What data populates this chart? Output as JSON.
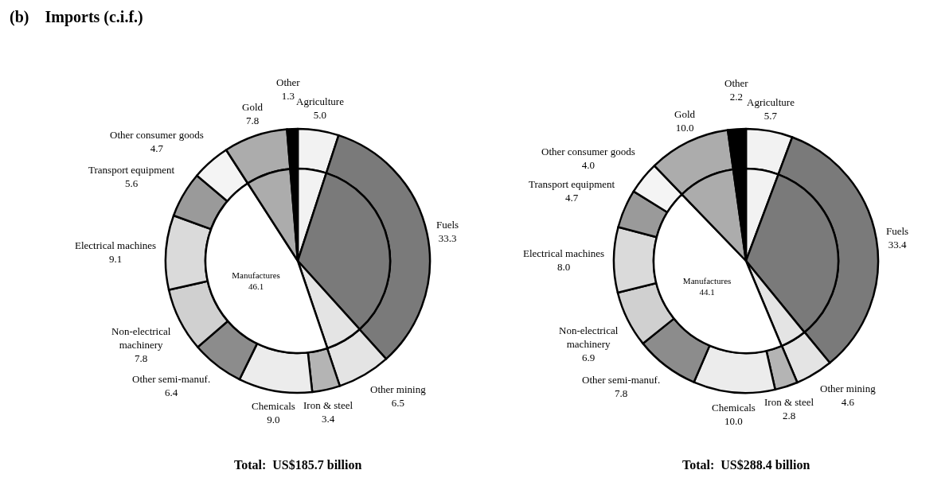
{
  "chart_data": [
    {
      "type": "donut",
      "title": "(b)    Imports (c.i.f.)",
      "categories": [
        "Agriculture",
        "Fuels",
        "Other mining",
        "Iron & steel",
        "Chemicals",
        "Other semi-manuf.",
        "Non-electrical machinery",
        "Electrical machines",
        "Transport equipment",
        "Other consumer goods",
        "Gold",
        "Other"
      ],
      "series": [
        {
          "values": [
            5.0,
            33.3,
            6.5,
            3.4,
            9.0,
            6.4,
            7.8,
            9.1,
            5.6,
            4.7,
            7.8,
            1.3
          ],
          "value_labels": [
            "5.0",
            "33.3",
            "6.5",
            "3.4",
            "9.0",
            "6.4",
            "7.8",
            "9.1",
            "5.6",
            "4.7",
            "7.8",
            "1.3"
          ],
          "colors": [
            "#f2f2f2",
            "#7a7a7a",
            "#e4e4e4",
            "#b4b4b4",
            "#ececec",
            "#8c8c8c",
            "#d0d0d0",
            "#dadada",
            "#9a9a9a",
            "#f4f4f4",
            "#acacac",
            "#000000"
          ]
        },
        {
          "type": "pie",
          "name": "Manufactures",
          "values": [
            5.0,
            33.3,
            6.5,
            46.1,
            null,
            null,
            null,
            null,
            null,
            null,
            7.8,
            1.3
          ],
          "value_labels": [
            null,
            null,
            null,
            "46.1",
            null,
            null,
            null,
            null,
            null,
            null,
            null,
            null
          ],
          "colors": [
            "#f2f2f2",
            "#7a7a7a",
            "#e4e4e4",
            "#ffffff",
            null,
            null,
            null,
            null,
            null,
            null,
            "#acacac",
            "#000000"
          ]
        }
      ],
      "annotations": [
        "Total:  US$185.7 billion"
      ]
    },
    {
      "type": "donut",
      "categories": [
        "Agriculture",
        "Fuels",
        "Other mining",
        "Iron & steel",
        "Chemicals",
        "Other semi-manuf.",
        "Non-electrical machinery",
        "Electrical machines",
        "Transport equipment",
        "Other consumer goods",
        "Gold",
        "Other"
      ],
      "series": [
        {
          "values": [
            5.7,
            33.4,
            4.6,
            2.8,
            10.0,
            7.8,
            6.9,
            8.0,
            4.7,
            4.0,
            10.0,
            2.2
          ],
          "value_labels": [
            "5.7",
            "33.4",
            "4.6",
            "2.8",
            "10.0",
            "7.8",
            "6.9",
            "8.0",
            "4.7",
            "4.0",
            "10.0",
            "2.2"
          ],
          "colors": [
            "#f2f2f2",
            "#7a7a7a",
            "#e4e4e4",
            "#b4b4b4",
            "#ececec",
            "#8c8c8c",
            "#d0d0d0",
            "#dadada",
            "#9a9a9a",
            "#f4f4f4",
            "#acacac",
            "#000000"
          ]
        },
        {
          "type": "pie",
          "name": "Manufactures",
          "values": [
            5.7,
            33.4,
            4.6,
            44.1,
            null,
            null,
            null,
            null,
            null,
            null,
            10.0,
            2.2
          ],
          "value_labels": [
            null,
            null,
            null,
            "44.1",
            null,
            null,
            null,
            null,
            null,
            null,
            null,
            null
          ],
          "colors": [
            "#f2f2f2",
            "#7a7a7a",
            "#e4e4e4",
            "#ffffff",
            null,
            null,
            null,
            null,
            null,
            null,
            "#acacac",
            "#000000"
          ]
        }
      ],
      "annotations": [
        "Total:  US$288.4 billion"
      ]
    }
  ]
}
